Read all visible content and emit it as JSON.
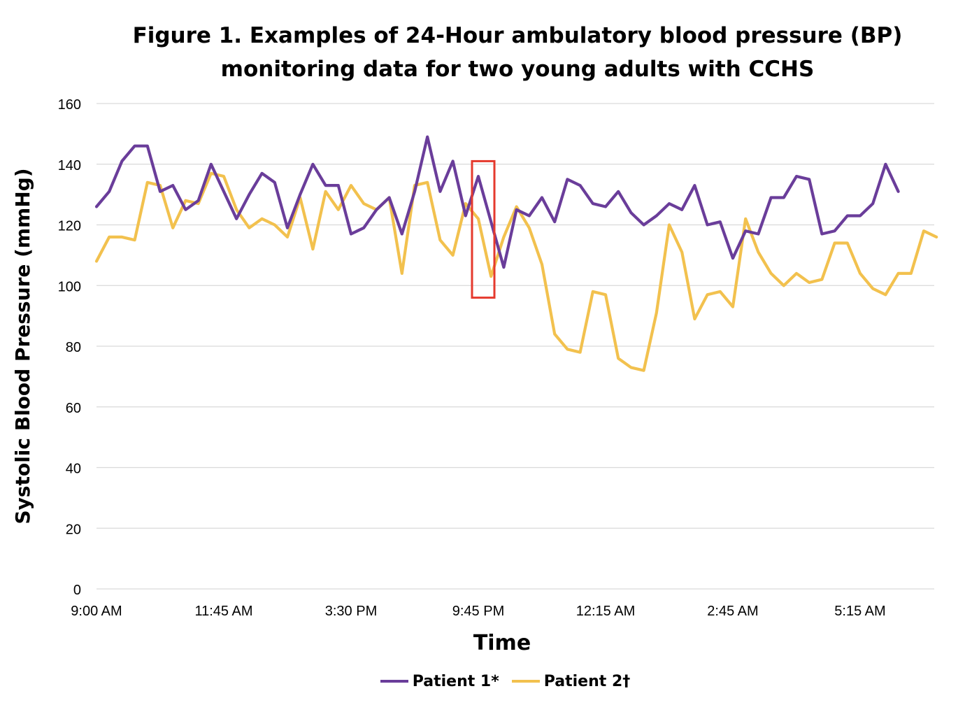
{
  "chart_data": {
    "type": "line",
    "title": "Figure 1. Examples of 24-Hour ambulatory blood pressure (BP) monitoring data for two young adults with CCHS",
    "title_lines": [
      "Figure 1. Examples of 24-Hour ambulatory blood pressure (BP)",
      "monitoring data for two young adults with CCHS"
    ],
    "xlabel": "Time",
    "ylabel": "Systolic Blood Pressure (mmHg)",
    "ylim": [
      0,
      160
    ],
    "yticks": [
      "0",
      "20",
      "40",
      "60",
      "80",
      "100",
      "120",
      "140",
      "160"
    ],
    "xtick_labels": [
      "9:00 AM",
      "11:45 AM",
      "3:30 PM",
      "9:45 PM",
      "12:15 AM",
      "2:45 AM",
      "5:15 AM"
    ],
    "grid": "horizontal",
    "legend": "bottom",
    "highlight": {
      "series": "Patient 1*",
      "x_index": 30,
      "ylim": [
        96,
        141
      ],
      "color": "#e53a2e"
    },
    "series": [
      {
        "name": "Patient 1*",
        "color": "#6a3d9a",
        "values": [
          126,
          131,
          141,
          146,
          146,
          131,
          133,
          125,
          128,
          140,
          131,
          122,
          130,
          137,
          134,
          119,
          130,
          140,
          133,
          133,
          117,
          119,
          125,
          129,
          117,
          131,
          149,
          131,
          141,
          123,
          136,
          121,
          106,
          125,
          123,
          129,
          121,
          135,
          133,
          127,
          126,
          131,
          124,
          120,
          123,
          127,
          125,
          133,
          120,
          121,
          109,
          118,
          117,
          129,
          129,
          136,
          135,
          117,
          118,
          123,
          123,
          127,
          140,
          131
        ]
      },
      {
        "name": "Patient 2†",
        "color": "#f2c14e",
        "values": [
          108,
          116,
          116,
          115,
          134,
          133,
          119,
          128,
          127,
          137,
          136,
          125,
          119,
          122,
          120,
          116,
          129,
          112,
          131,
          125,
          133,
          127,
          125,
          129,
          104,
          133,
          134,
          115,
          110,
          127,
          122,
          103,
          116,
          126,
          119,
          107,
          84,
          79,
          78,
          98,
          97,
          76,
          73,
          72,
          91,
          120,
          111,
          89,
          97,
          98,
          93,
          122,
          111,
          104,
          100,
          104,
          101,
          102,
          114,
          114,
          104,
          99,
          97,
          104,
          104,
          118,
          116
        ]
      }
    ]
  }
}
